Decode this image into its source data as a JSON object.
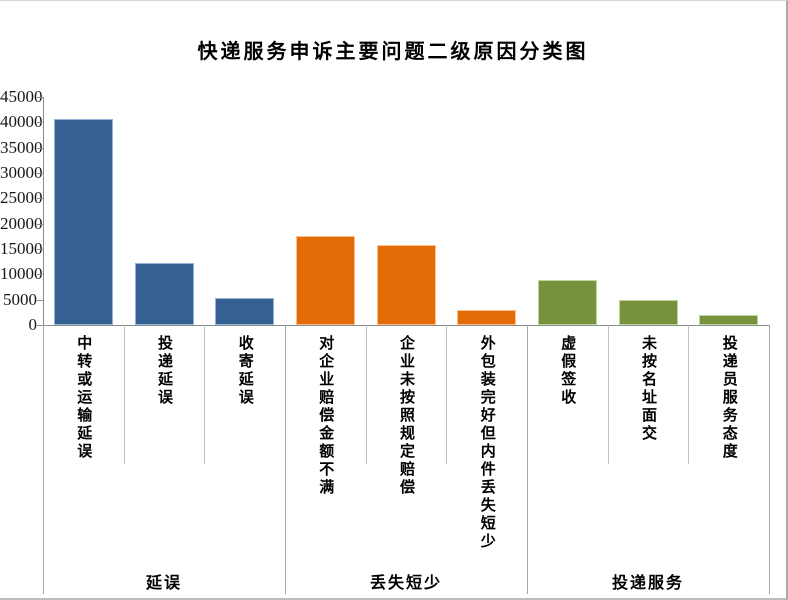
{
  "chart_data": {
    "type": "bar",
    "title": "快递服务申诉主要问题二级原因分类图",
    "xlabel": "",
    "ylabel": "",
    "ylim": [
      0,
      45000
    ],
    "ytick_step": 5000,
    "yticks": [
      0,
      5000,
      10000,
      15000,
      20000,
      25000,
      30000,
      35000,
      40000,
      45000
    ],
    "grid": false,
    "legend": "none",
    "axis_color": "#8C8C8C",
    "separator_color": "#BFBFBF",
    "group_separator_color": "#A6A6A6",
    "groups": [
      {
        "label": "延误",
        "color": "#366092",
        "border_color": "#95B3D7",
        "categories": [
          "中转或运输延误",
          "投递延误",
          "收寄延误"
        ],
        "values": [
          40600,
          12300,
          5400
        ]
      },
      {
        "label": "丢失短少",
        "color": "#E36C09",
        "border_color": "#FAC090",
        "categories": [
          "对企业赔偿金额不满",
          "企业未按照规定赔偿",
          "外包装完好但内件丢失短少"
        ],
        "values": [
          17600,
          15800,
          2900
        ]
      },
      {
        "label": "投递服务",
        "color": "#76923C",
        "border_color": "#C3D69B",
        "categories": [
          "虚假签收",
          "未按名址面交",
          "投递员服务态度"
        ],
        "values": [
          8900,
          4900,
          1900
        ]
      }
    ]
  }
}
